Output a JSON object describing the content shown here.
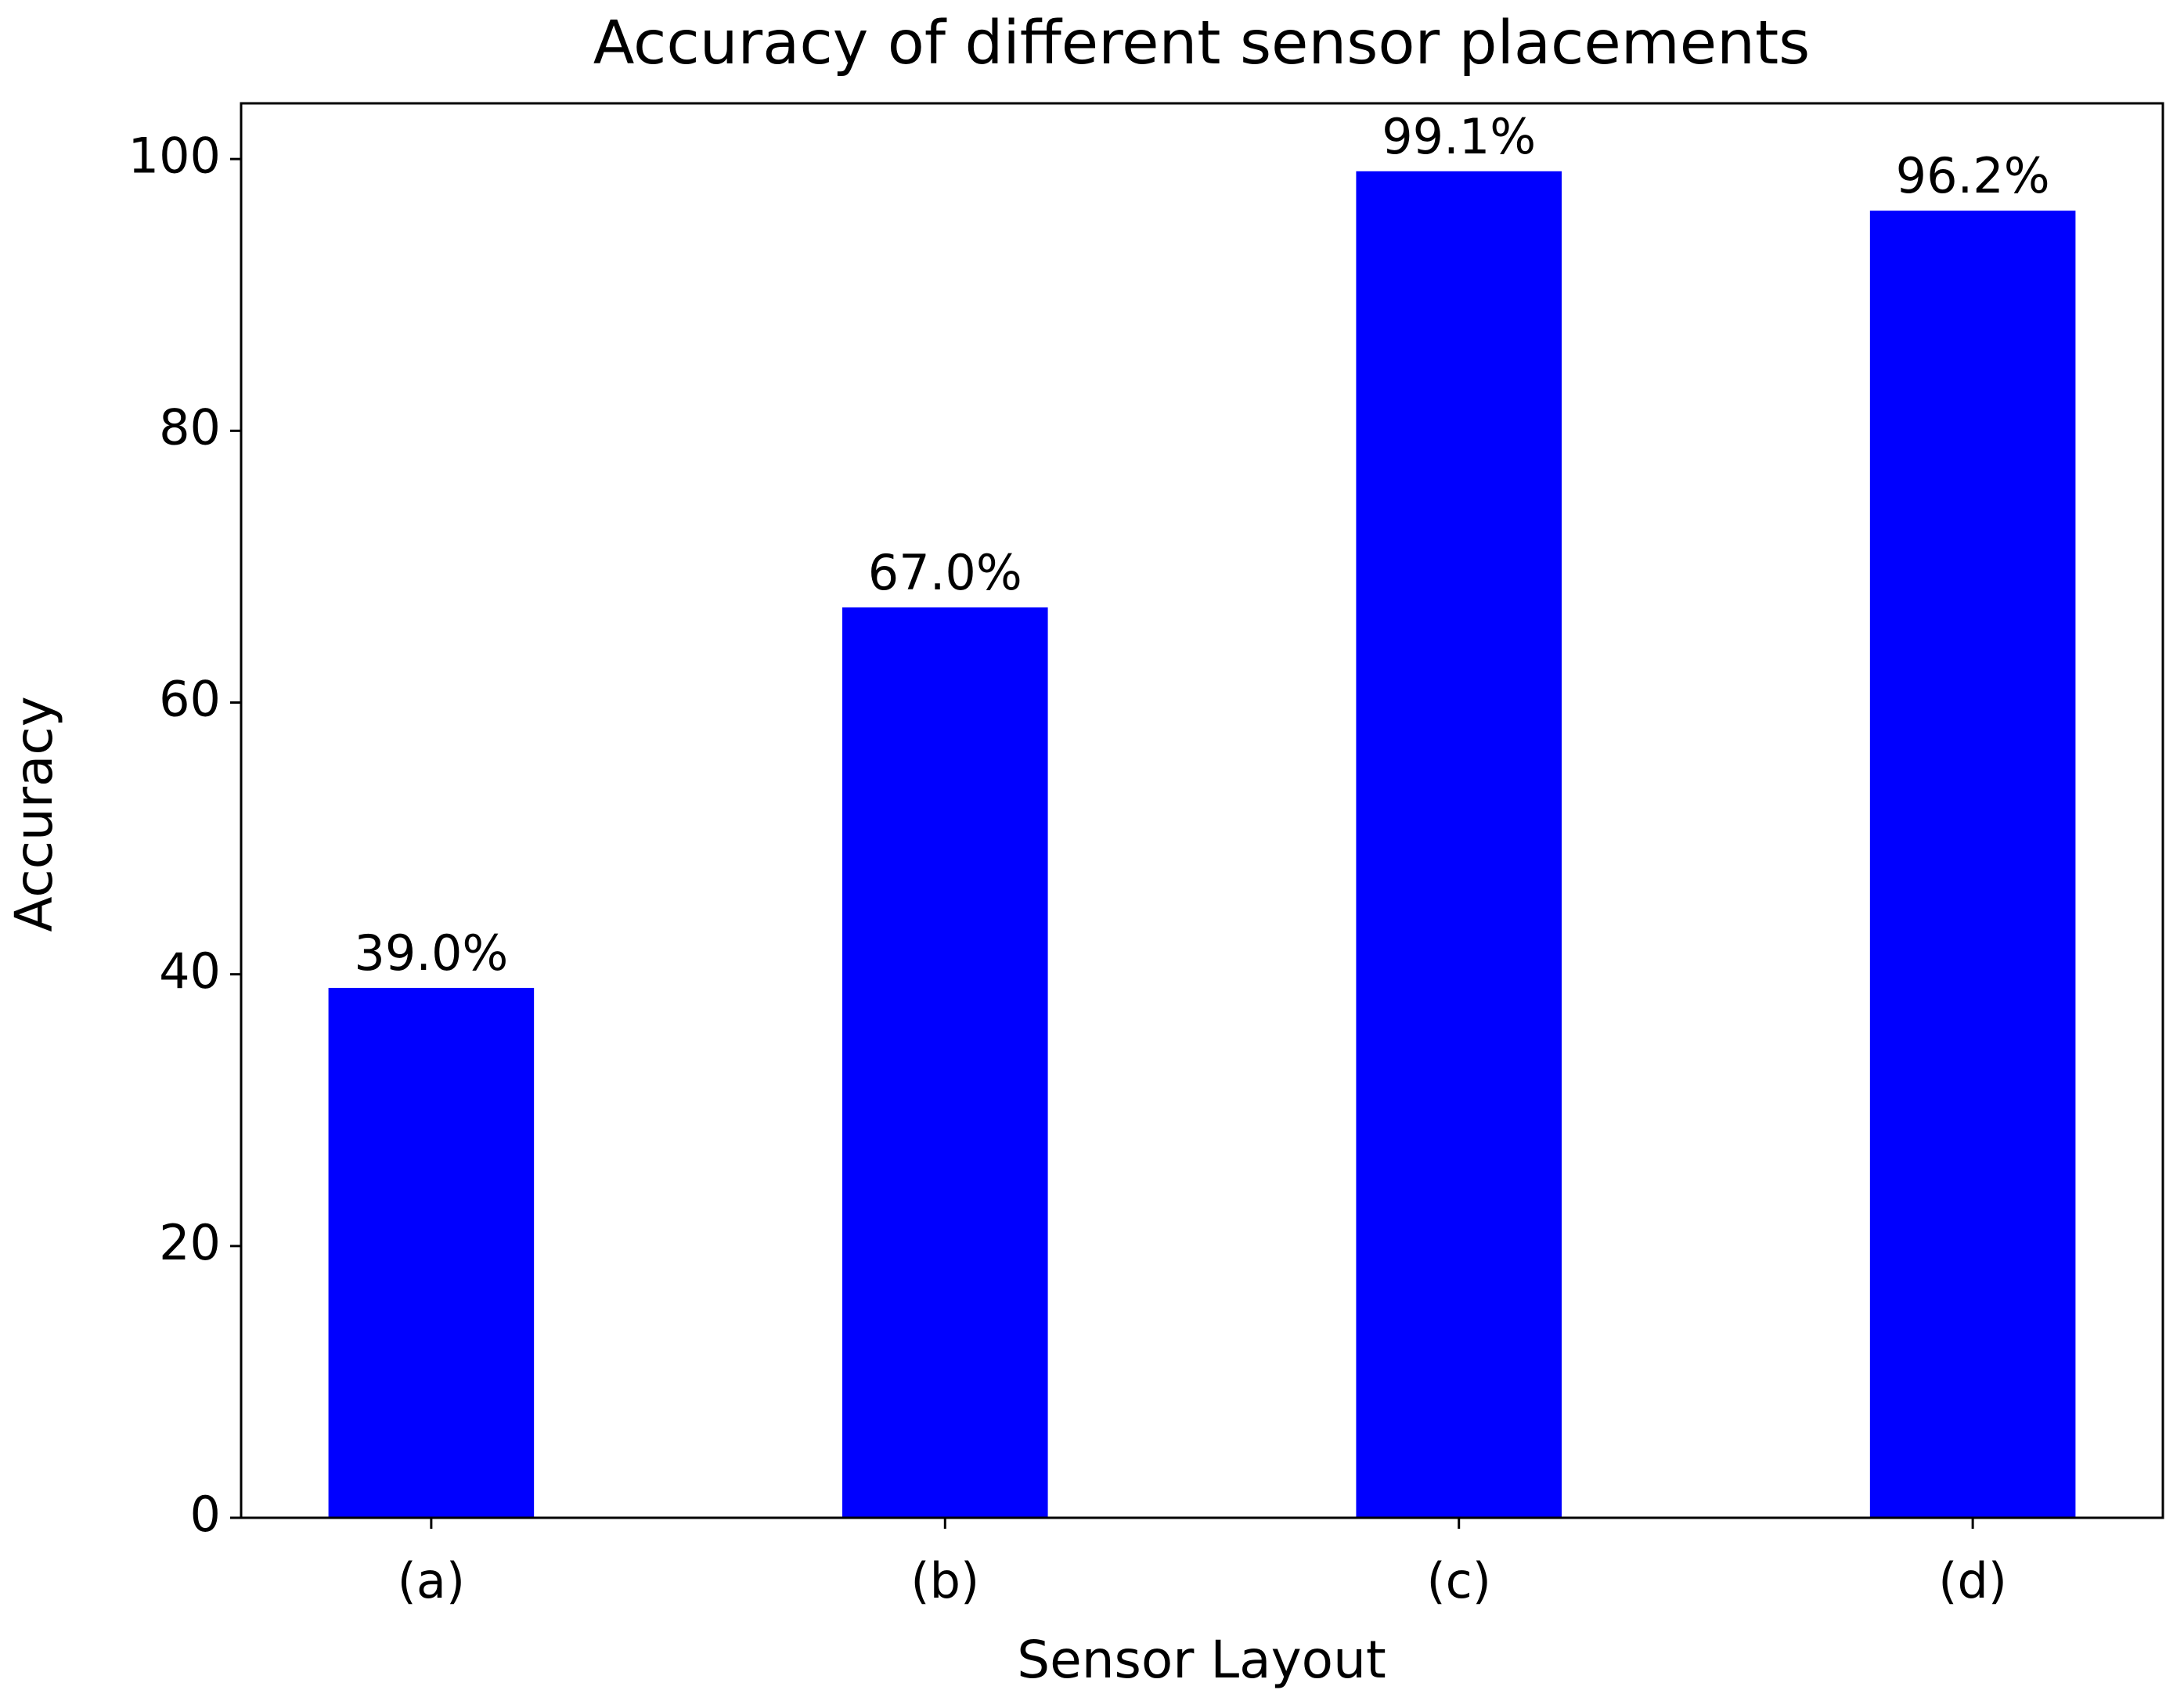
{
  "chart_data": {
    "type": "bar",
    "title": "Accuracy of different sensor placements",
    "x_label": "Sensor Layout",
    "y_label": "Accuracy",
    "categories": [
      "(a)",
      "(b)",
      "(c)",
      "(d)"
    ],
    "values": [
      39.0,
      67.0,
      99.1,
      96.2
    ],
    "value_labels": [
      "39.0%",
      "67.0%",
      "99.1%",
      "96.2%"
    ],
    "color": "#0000ff",
    "ylim": [
      0,
      104.1
    ],
    "yticks": [
      0,
      20,
      40,
      60,
      80,
      100
    ],
    "grid": false
  }
}
